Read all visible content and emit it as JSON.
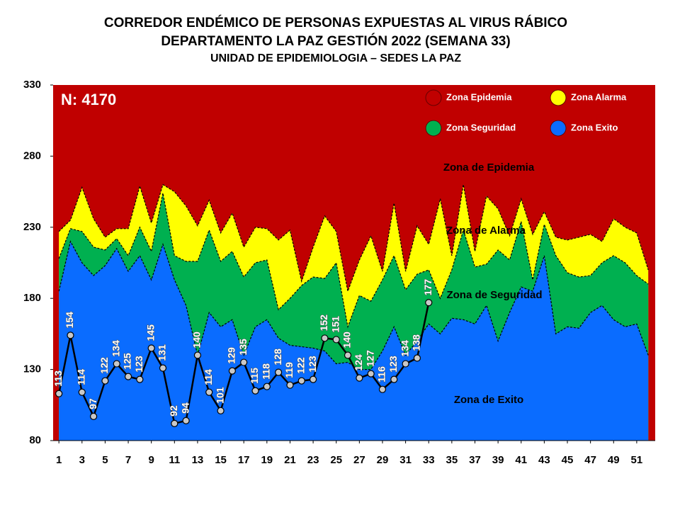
{
  "chart_data": {
    "type": "area",
    "title": "CORREDOR ENDÉMICO DE PERSONAS EXPUESTAS AL VIRUS RÁBICO",
    "subtitle": "DEPARTAMENTO  LA PAZ GESTIÓN 2022 (SEMANA 33)",
    "subtitle2": "UNIDAD DE EPIDEMIOLOGIA – SEDES LA PAZ",
    "annotations": [
      "N: 4170",
      "Zona de Epidemia",
      "Zona de Alarma",
      "Zona de Seguridad",
      "Zona de Exito"
    ],
    "xlim": [
      0.5,
      52.6
    ],
    "xticks": [
      1,
      3,
      5,
      7,
      9,
      11,
      13,
      15,
      17,
      19,
      21,
      23,
      25,
      27,
      29,
      31,
      33,
      35,
      37,
      39,
      41,
      43,
      45,
      47,
      49,
      51
    ],
    "ylim": [
      80,
      330
    ],
    "yticks": [
      80,
      130,
      180,
      230,
      280,
      330
    ],
    "x": [
      1,
      2,
      3,
      4,
      5,
      6,
      7,
      8,
      9,
      10,
      11,
      12,
      13,
      14,
      15,
      16,
      17,
      18,
      19,
      20,
      21,
      22,
      23,
      24,
      25,
      26,
      27,
      28,
      29,
      30,
      31,
      32,
      33,
      34,
      35,
      36,
      37,
      38,
      39,
      40,
      41,
      42,
      43,
      44,
      45,
      46,
      47,
      48,
      49,
      50,
      51,
      52
    ],
    "background_zone": {
      "name": "Zona Epidemia",
      "color": "#c00000"
    },
    "series": [
      {
        "name": "Zona Exito",
        "color": "#0a6cff",
        "values": [
          185,
          220,
          205,
          196,
          203,
          215,
          199,
          210,
          193,
          218,
          193,
          175,
          140,
          170,
          160,
          165,
          140,
          160,
          165,
          152,
          147,
          146,
          145,
          143,
          134,
          135,
          130,
          130,
          143,
          160,
          140,
          150,
          162,
          155,
          166,
          165,
          162,
          175,
          150,
          170,
          188,
          185,
          210,
          155,
          160,
          159,
          170,
          175,
          165,
          160,
          162,
          140
        ]
      },
      {
        "name": "Zona Seguridad",
        "color": "#00b050",
        "values": [
          208,
          229,
          227,
          216,
          214,
          222,
          210,
          230,
          213,
          254,
          210,
          206,
          206,
          228,
          206,
          213,
          195,
          205,
          207,
          172,
          180,
          189,
          195,
          194,
          205,
          160,
          182,
          178,
          193,
          210,
          186,
          197,
          200,
          180,
          200,
          228,
          202,
          204,
          214,
          207,
          234,
          193,
          232,
          210,
          198,
          195,
          196,
          205,
          210,
          205,
          196,
          190
        ]
      },
      {
        "name": "Zona Alarma",
        "color": "#ffff00",
        "values": [
          227,
          235,
          258,
          236,
          223,
          229,
          229,
          259,
          233,
          260,
          255,
          245,
          231,
          249,
          226,
          240,
          216,
          230,
          229,
          221,
          228,
          192,
          216,
          238,
          227,
          185,
          207,
          224,
          199,
          247,
          199,
          231,
          218,
          250,
          210,
          260,
          213,
          252,
          243,
          224,
          250,
          225,
          241,
          223,
          221,
          223,
          225,
          220,
          236,
          230,
          226,
          200
        ]
      }
    ],
    "overlay": {
      "type": "line",
      "color": "#000000",
      "marker_color": "#c8c8c8",
      "label_color": "#ffffff",
      "x": [
        1,
        2,
        3,
        4,
        5,
        6,
        7,
        8,
        9,
        10,
        11,
        12,
        13,
        14,
        15,
        16,
        17,
        18,
        19,
        20,
        21,
        22,
        23,
        24,
        25,
        26,
        27,
        28,
        29,
        30,
        31,
        32,
        33
      ],
      "values": [
        113,
        154,
        114,
        97,
        122,
        134,
        125,
        123,
        145,
        131,
        92,
        94,
        140,
        114,
        101,
        129,
        135,
        115,
        118,
        128,
        119,
        122,
        123,
        152,
        151,
        140,
        124,
        127,
        116,
        123,
        134,
        138,
        177
      ]
    }
  }
}
